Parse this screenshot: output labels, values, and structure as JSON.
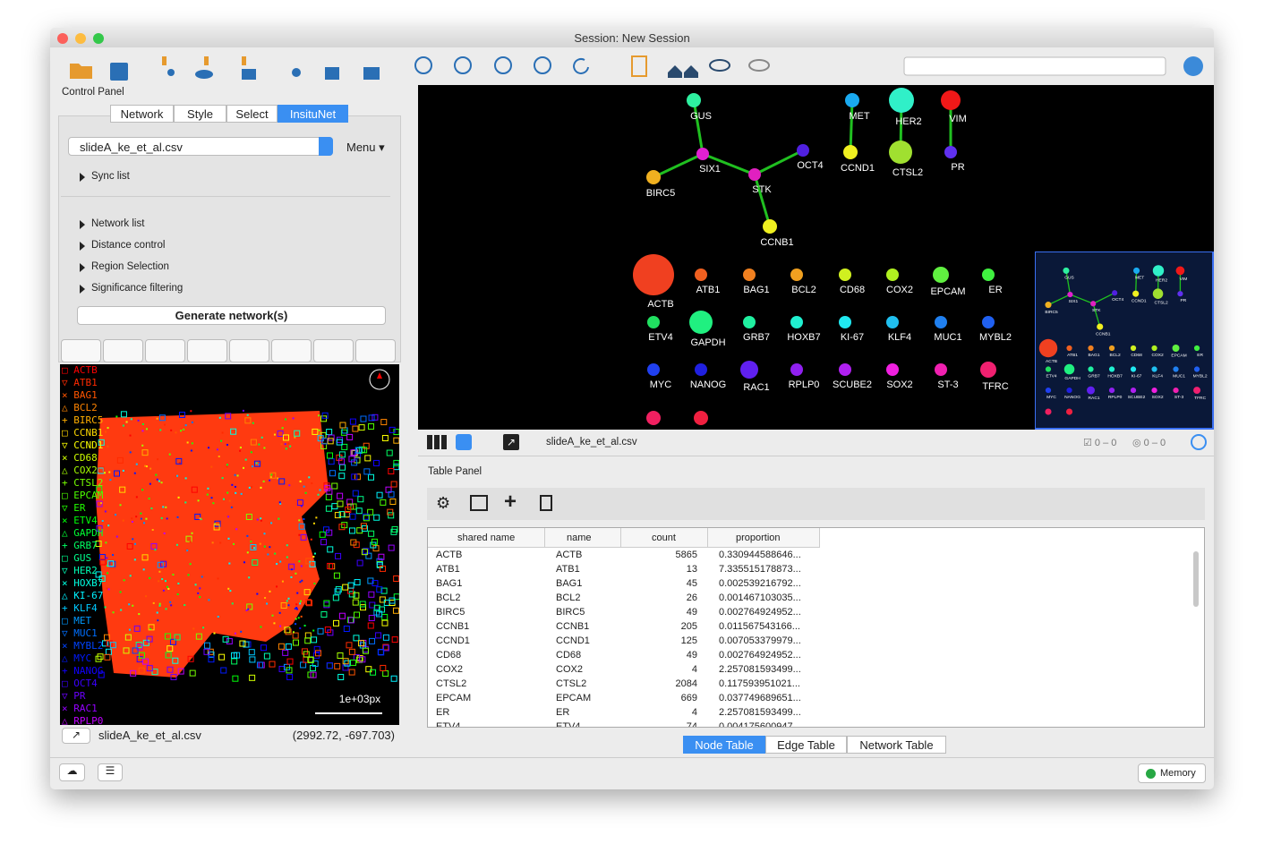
{
  "window": {
    "title": "Session: New Session"
  },
  "control_panel": {
    "title": "Control Panel",
    "tabs": [
      "Network",
      "Style",
      "Select",
      "InsituNet"
    ],
    "file": "slideA_ke_et_al.csv",
    "menu": "Menu",
    "sections": [
      "Sync list",
      "Network list",
      "Distance control",
      "Region Selection",
      "Significance filtering"
    ],
    "button": "Generate network(s)",
    "legend": [
      "□ ACTB",
      "▽ ATB1",
      "× BAG1",
      "△ BCL2",
      "+ BIRC5",
      "□ CCNB1",
      "▽ CCND1",
      "× CD68",
      "△ COX2",
      "+ CTSL2",
      "□ EPCAM",
      "▽ ER",
      "× ETV4",
      "△ GAPDH",
      "+ GRB7",
      "□ GUS",
      "▽ HER2",
      "× HOXB7",
      "△ KI-67",
      "+ KLF4",
      "□ MET",
      "▽ MUC1",
      "× MYBL2",
      "△ MYC",
      "+ NANOG",
      "□ OCT4",
      "▽ PR",
      "× RAC1",
      "△ RPLP0"
    ],
    "scale": "1e+03px",
    "status_file": "slideA_ke_et_al.csv",
    "coords": "(2992.72, -697.703)"
  },
  "network": {
    "nodes": [
      "GUS",
      "MET",
      "HER2",
      "VIM",
      "SIX1",
      "OCT4",
      "CCND1",
      "CTSL2",
      "PR",
      "BIRC5",
      "STK",
      "CCNB1",
      "ACTB",
      "ATB1",
      "BAG1",
      "BCL2",
      "CD68",
      "COX2",
      "EPCAM",
      "ER",
      "ETV4",
      "GAPDH",
      "GRB7",
      "HOXB7",
      "KI-67",
      "KLF4",
      "MUC1",
      "MYBL2",
      "MYC",
      "NANOG",
      "RAC1",
      "RPLP0",
      "SCUBE2",
      "SOX2",
      "ST-3",
      "TFRC"
    ],
    "file": "slideA_ke_et_al.csv",
    "selected": "0 – 0",
    "hidden": "0 – 0"
  },
  "table_panel": {
    "title": "Table Panel",
    "columns": [
      "shared name",
      "name",
      "count",
      "proportion"
    ],
    "rows": [
      [
        "ACTB",
        "ACTB",
        5865,
        "0.330944588646..."
      ],
      [
        "ATB1",
        "ATB1",
        13,
        "7.335515178873..."
      ],
      [
        "BAG1",
        "BAG1",
        45,
        "0.002539216792..."
      ],
      [
        "BCL2",
        "BCL2",
        26,
        "0.001467103035..."
      ],
      [
        "BIRC5",
        "BIRC5",
        49,
        "0.002764924952..."
      ],
      [
        "CCNB1",
        "CCNB1",
        205,
        "0.011567543166..."
      ],
      [
        "CCND1",
        "CCND1",
        125,
        "0.007053379979..."
      ],
      [
        "CD68",
        "CD68",
        49,
        "0.002764924952..."
      ],
      [
        "COX2",
        "COX2",
        4,
        "2.257081593499..."
      ],
      [
        "CTSL2",
        "CTSL2",
        2084,
        "0.117593951021..."
      ],
      [
        "EPCAM",
        "EPCAM",
        669,
        "0.037749689651..."
      ],
      [
        "ER",
        "ER",
        4,
        "2.257081593499..."
      ],
      [
        "ETV4",
        "ETV4",
        74,
        "0.004175600947..."
      ]
    ],
    "tabs": [
      "Node Table",
      "Edge Table",
      "Network Table"
    ]
  },
  "footer": {
    "memory": "Memory"
  }
}
